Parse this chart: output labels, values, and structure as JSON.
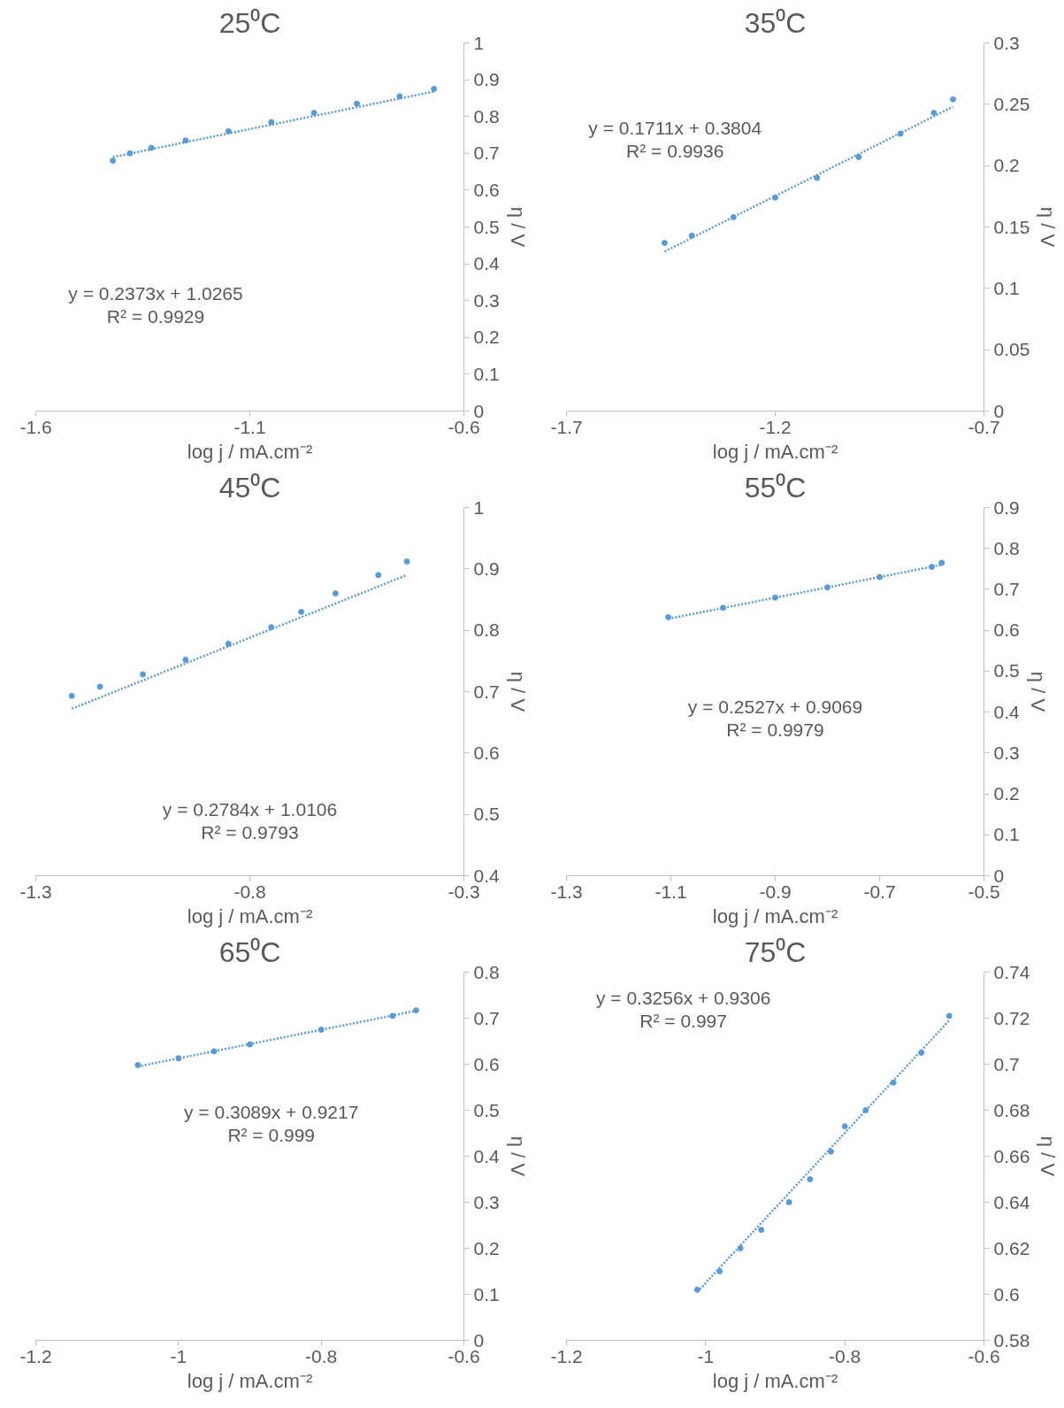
{
  "chart_data": [
    {
      "type": "scatter",
      "title": "25⁰C",
      "xlabel": "log j / mA.cm⁻²",
      "ylabel": "η / V",
      "xlim": [
        -1.6,
        -0.6
      ],
      "xticks": [
        -1.6,
        -1.1,
        -0.6
      ],
      "ylim": [
        0,
        1
      ],
      "yticks": [
        0,
        0.1,
        0.2,
        0.3,
        0.4,
        0.5,
        0.6,
        0.7,
        0.8,
        0.9,
        1
      ],
      "grid": false,
      "annotations": [
        "y = 0.2373x + 1.0265",
        "R² = 0.9929"
      ],
      "series": [
        {
          "color": "#5b9bd5",
          "marker": "circle",
          "x": [
            -1.42,
            -1.38,
            -1.33,
            -1.25,
            -1.15,
            -1.05,
            -0.95,
            -0.85,
            -0.75,
            -0.67
          ],
          "values": [
            0.68,
            0.7,
            0.715,
            0.735,
            0.76,
            0.785,
            0.81,
            0.835,
            0.855,
            0.875
          ]
        },
        {
          "type": "line",
          "color": "#5b9bd5",
          "marker": "none",
          "line_style": "dotted",
          "x": [
            -1.42,
            -0.67
          ],
          "values": [
            0.69,
            0.868
          ]
        }
      ]
    },
    {
      "type": "scatter",
      "title": "35⁰C",
      "xlabel": "log j / mA.cm⁻²",
      "ylabel": "η / V",
      "xlim": [
        -1.7,
        -0.7
      ],
      "xticks": [
        -1.7,
        -1.2,
        -0.7
      ],
      "ylim": [
        0,
        0.3
      ],
      "yticks": [
        0,
        0.05,
        0.1,
        0.15,
        0.2,
        0.25,
        0.3
      ],
      "grid": false,
      "annotations": [
        "y = 0.1711x + 0.3804",
        "R² = 0.9936"
      ],
      "series": [
        {
          "color": "#5b9bd5",
          "marker": "circle",
          "x": [
            -1.465,
            -1.4,
            -1.3,
            -1.2,
            -1.1,
            -1.0,
            -0.9,
            -0.82,
            -0.774
          ],
          "values": [
            0.137,
            0.143,
            0.158,
            0.174,
            0.19,
            0.207,
            0.226,
            0.243,
            0.254
          ]
        },
        {
          "type": "line",
          "color": "#5b9bd5",
          "marker": "none",
          "line_style": "dotted",
          "x": [
            -1.465,
            -0.774
          ],
          "values": [
            0.13,
            0.248
          ]
        }
      ]
    },
    {
      "type": "scatter",
      "title": "45⁰C",
      "xlabel": "log j / mA.cm⁻²",
      "ylabel": "η / V",
      "xlim": [
        -1.3,
        -0.3
      ],
      "xticks": [
        -1.3,
        -0.8,
        -0.3
      ],
      "ylim": [
        0.4,
        1
      ],
      "yticks": [
        0.4,
        0.5,
        0.6,
        0.7,
        0.8,
        0.9,
        1
      ],
      "grid": false,
      "annotations": [
        "y = 0.2784x + 1.0106",
        "R² = 0.9793"
      ],
      "series": [
        {
          "color": "#5b9bd5",
          "marker": "circle",
          "x": [
            -1.216,
            -1.15,
            -1.05,
            -0.95,
            -0.85,
            -0.75,
            -0.68,
            -0.6,
            -0.5,
            -0.433
          ],
          "values": [
            0.693,
            0.708,
            0.728,
            0.752,
            0.778,
            0.805,
            0.83,
            0.86,
            0.89,
            0.912
          ]
        },
        {
          "type": "line",
          "color": "#5b9bd5",
          "marker": "none",
          "line_style": "dotted",
          "x": [
            -1.216,
            -0.433
          ],
          "values": [
            0.672,
            0.89
          ]
        }
      ]
    },
    {
      "type": "scatter",
      "title": "55⁰C",
      "xlabel": "log j / mA.cm⁻²",
      "ylabel": "η / V",
      "xlim": [
        -1.3,
        -0.5
      ],
      "xticks": [
        -1.3,
        -1.1,
        -0.9,
        -0.7,
        -0.5
      ],
      "ylim": [
        0,
        0.9
      ],
      "yticks": [
        0,
        0.1,
        0.2,
        0.3,
        0.4,
        0.5,
        0.6,
        0.7,
        0.8,
        0.9
      ],
      "grid": false,
      "annotations": [
        "y = 0.2527x + 0.9069",
        "R² = 0.9979"
      ],
      "series": [
        {
          "color": "#5b9bd5",
          "marker": "circle",
          "x": [
            -1.105,
            -1.0,
            -0.9,
            -0.8,
            -0.7,
            -0.6,
            -0.581
          ],
          "values": [
            0.632,
            0.655,
            0.68,
            0.705,
            0.73,
            0.755,
            0.765
          ]
        },
        {
          "type": "line",
          "color": "#5b9bd5",
          "marker": "none",
          "line_style": "dotted",
          "x": [
            -1.105,
            -0.581
          ],
          "values": [
            0.628,
            0.76
          ]
        }
      ]
    },
    {
      "type": "scatter",
      "title": "65⁰C",
      "xlabel": "log j / mA.cm⁻²",
      "ylabel": "η / V",
      "xlim": [
        -1.2,
        -0.6
      ],
      "xticks": [
        -1.2,
        -1,
        -0.8,
        -0.6
      ],
      "ylim": [
        0,
        0.8
      ],
      "yticks": [
        0,
        0.1,
        0.2,
        0.3,
        0.4,
        0.5,
        0.6,
        0.7,
        0.8
      ],
      "grid": false,
      "annotations": [
        "y = 0.3089x + 0.9217",
        "R² = 0.999"
      ],
      "series": [
        {
          "color": "#5b9bd5",
          "marker": "circle",
          "x": [
            -1.057,
            -1.0,
            -0.95,
            -0.9,
            -0.8,
            -0.7,
            -0.667
          ],
          "values": [
            0.598,
            0.613,
            0.628,
            0.643,
            0.675,
            0.705,
            0.717
          ]
        },
        {
          "type": "line",
          "color": "#5b9bd5",
          "marker": "none",
          "line_style": "dotted",
          "x": [
            -1.057,
            -0.667
          ],
          "values": [
            0.595,
            0.716
          ]
        }
      ]
    },
    {
      "type": "scatter",
      "title": "75⁰C",
      "xlabel": "log j / mA.cm⁻²",
      "ylabel": "η / V",
      "xlim": [
        -1.2,
        -0.6
      ],
      "xticks": [
        -1.2,
        -1,
        -0.8,
        -0.6
      ],
      "ylim": [
        0.58,
        0.74
      ],
      "yticks": [
        0.58,
        0.6,
        0.62,
        0.64,
        0.66,
        0.68,
        0.7,
        0.72,
        0.74
      ],
      "grid": false,
      "annotations": [
        "y = 0.3256x + 0.9306",
        "R² = 0.997"
      ],
      "series": [
        {
          "color": "#5b9bd5",
          "marker": "circle",
          "x": [
            -1.012,
            -0.98,
            -0.95,
            -0.92,
            -0.88,
            -0.85,
            -0.82,
            -0.8,
            -0.77,
            -0.73,
            -0.69,
            -0.65
          ],
          "values": [
            0.602,
            0.61,
            0.62,
            0.628,
            0.64,
            0.65,
            0.662,
            0.673,
            0.68,
            0.692,
            0.705,
            0.721
          ]
        },
        {
          "type": "line",
          "color": "#5b9bd5",
          "marker": "none",
          "line_style": "dotted",
          "x": [
            -1.012,
            -0.65
          ],
          "values": [
            0.601,
            0.719
          ]
        }
      ]
    }
  ]
}
